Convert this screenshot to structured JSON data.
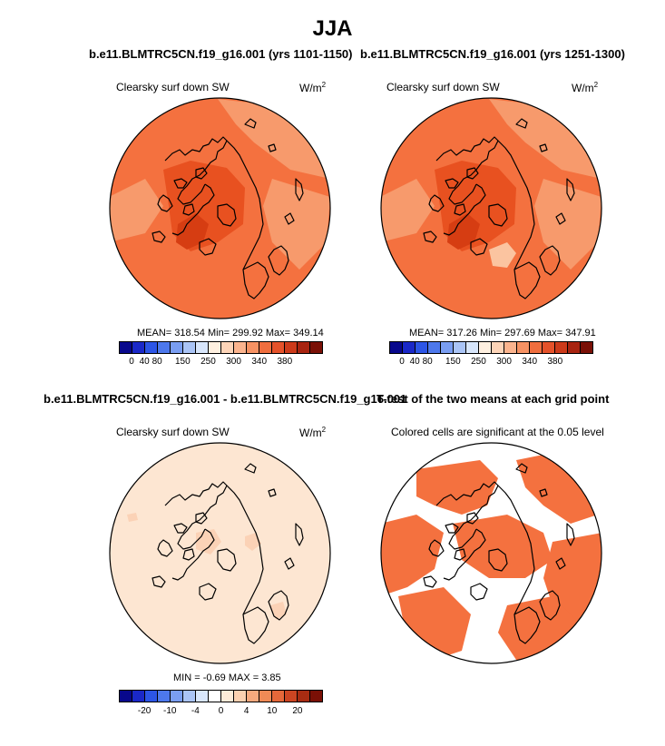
{
  "main_title": "JJA",
  "panels": {
    "p1": {
      "title": "b.e11.BLMTRC5CN.f19_g16.001 (yrs 1101-1150)",
      "subtitle": "Clearsky surf down SW",
      "units": "W/m",
      "units_exp": "2",
      "stats": "MEAN= 318.54  Min= 299.92  Max= 349.14"
    },
    "p2": {
      "title": "b.e11.BLMTRC5CN.f19_g16.001 (yrs 1251-1300)",
      "subtitle": "Clearsky surf down SW",
      "units": "W/m",
      "units_exp": "2",
      "stats": "MEAN= 317.26  Min= 297.69  Max= 347.91"
    },
    "p3": {
      "title": "b.e11.BLMTRC5CN.f19_g16.001 - b.e11.BLMTRC5CN.f19_g16.001",
      "subtitle": "Clearsky surf down SW",
      "units": "W/m",
      "units_exp": "2",
      "stats": "MIN =  -0.69 MAX =   3.85"
    },
    "p4": {
      "title": "T-test of the two means at each grid point",
      "subtitle": "Colored cells are significant at the 0.05 level"
    }
  },
  "colorbars": {
    "abs": {
      "colors": [
        "#08088c",
        "#1a28c8",
        "#2c55e6",
        "#4d78ec",
        "#7a9ef2",
        "#aac4f6",
        "#d8e6fb",
        "#fff0e0",
        "#fdd4b8",
        "#fbb48e",
        "#f79263",
        "#f06e3e",
        "#e5522a",
        "#cc3a1a",
        "#a82410",
        "#7a1006"
      ],
      "ticks": [
        "0",
        "40",
        "80",
        "150",
        "250",
        "300",
        "340",
        "380"
      ]
    },
    "diff": {
      "colors": [
        "#08088c",
        "#1a28c8",
        "#2c55e6",
        "#4d78ec",
        "#7a9ef2",
        "#aac4f6",
        "#d8e6fb",
        "#ffffff",
        "#fdebd8",
        "#fbd0b0",
        "#f7a97e",
        "#f08a56",
        "#e5683a",
        "#cc4522",
        "#a82c12",
        "#7a1006"
      ],
      "ticks": [
        "-20",
        "-10",
        "-4",
        "0",
        "4",
        "10",
        "20"
      ]
    }
  },
  "colors": {
    "base_orange": "#f4713f",
    "light_orange": "#f79a6c",
    "dark_orange": "#e85120",
    "darker_orange": "#d63d12",
    "diff_fill": "#fde6d2",
    "diff_spot": "#fbd2b6",
    "ttest_fill": "#f4713f"
  }
}
